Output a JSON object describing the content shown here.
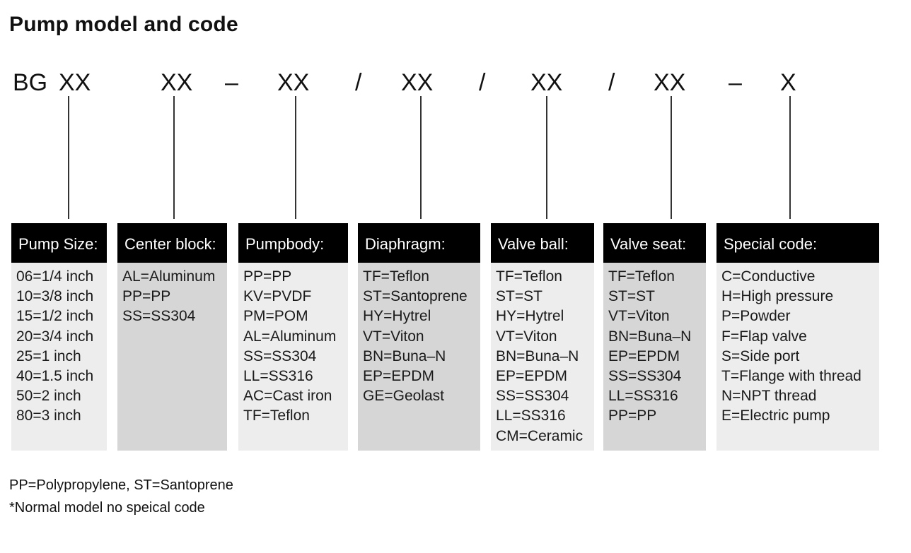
{
  "title": "Pump model and code",
  "code": {
    "prefix": "BG",
    "parts": [
      "XX",
      "XX",
      "–",
      "XX",
      "/",
      "XX",
      "/",
      "XX",
      "/",
      "XX",
      "–",
      "X"
    ]
  },
  "columns": [
    {
      "header": "Pump Size:",
      "entries": [
        "06=1/4 inch",
        "10=3/8 inch",
        "15=1/2 inch",
        "20=3/4 inch",
        "25=1 inch",
        "40=1.5 inch",
        "50=2 inch",
        "80=3 inch"
      ]
    },
    {
      "header": "Center block:",
      "entries": [
        "AL=Aluminum",
        "PP=PP",
        "SS=SS304"
      ]
    },
    {
      "header": "Pumpbody:",
      "entries": [
        "PP=PP",
        "KV=PVDF",
        "PM=POM",
        "AL=Aluminum",
        "SS=SS304",
        "LL=SS316",
        "AC=Cast iron",
        "TF=Teflon"
      ]
    },
    {
      "header": "Diaphragm:",
      "entries": [
        "TF=Teflon",
        "ST=Santoprene",
        "HY=Hytrel",
        "VT=Viton",
        "BN=Buna–N",
        "EP=EPDM",
        "GE=Geolast"
      ]
    },
    {
      "header": "Valve ball:",
      "entries": [
        "TF=Teflon",
        "ST=ST",
        "HY=Hytrel",
        "VT=Viton",
        "BN=Buna–N",
        "EP=EPDM",
        "SS=SS304",
        "LL=SS316",
        "CM=Ceramic"
      ]
    },
    {
      "header": "Valve seat:",
      "entries": [
        "TF=Teflon",
        "ST=ST",
        "VT=Viton",
        "BN=Buna–N",
        "EP=EPDM",
        "SS=SS304",
        "LL=SS316",
        "PP=PP"
      ]
    },
    {
      "header": "Special code:",
      "entries": [
        "C=Conductive",
        "H=High pressure",
        "P=Powder",
        "F=Flap valve",
        "S=Side port",
        "T=Flange with thread",
        "N=NPT thread",
        "E=Electric pump"
      ]
    }
  ],
  "footnotes": [
    "PP=Polypropylene, ST=Santoprene",
    "*Normal model no speical code"
  ]
}
